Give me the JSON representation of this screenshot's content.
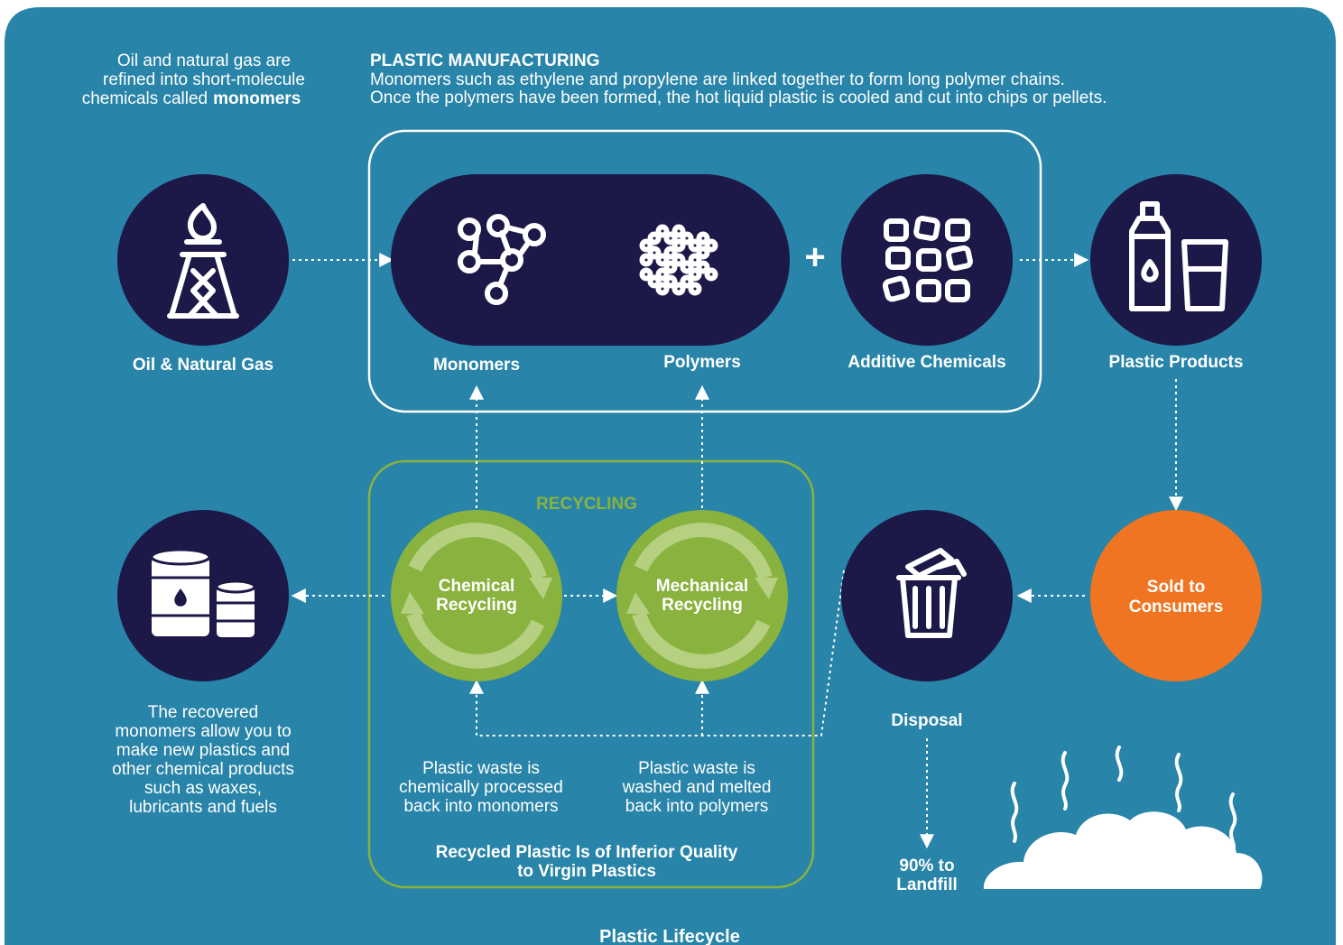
{
  "intro": {
    "lines": [
      "Oil and natural gas are",
      "refined into short-molecule",
      "chemicals called"
    ],
    "bold": "monomers"
  },
  "manufacturing": {
    "title": "PLASTIC MANUFACTURING",
    "lines": [
      "Monomers such as ethylene and propylene are linked together to form long polymer chains.",
      "Once the polymers have been formed, the hot liquid plastic is cooled and cut into chips or pellets."
    ]
  },
  "nodes": {
    "oil": "Oil & Natural Gas",
    "monomers": "Monomers",
    "polymers": "Polymers",
    "additives": "Additive Chemicals",
    "products": "Plastic Products",
    "consumers": [
      "Sold to",
      "Consumers"
    ],
    "disposal": "Disposal",
    "landfill": [
      "90% to",
      "Landfill"
    ],
    "chemical": [
      "Chemical",
      "Recycling"
    ],
    "mechanical": [
      "Mechanical",
      "Recycling"
    ]
  },
  "recycling": {
    "title": "RECYCLING",
    "chemical_note": [
      "Plastic waste is",
      "chemically processed",
      "back into monomers"
    ],
    "mechanical_note": [
      "Plastic waste is",
      "washed and melted",
      "back into polymers"
    ],
    "footnote": [
      "Recycled Plastic Is of Inferior Quality",
      "to Virgin Plastics"
    ]
  },
  "recovered_note": [
    "The recovered",
    "monomers allow you to",
    "make new plastics and",
    "other chemical products",
    "such as waxes,",
    "lubricants and fuels"
  ],
  "caption": "Plastic Lifecycle"
}
